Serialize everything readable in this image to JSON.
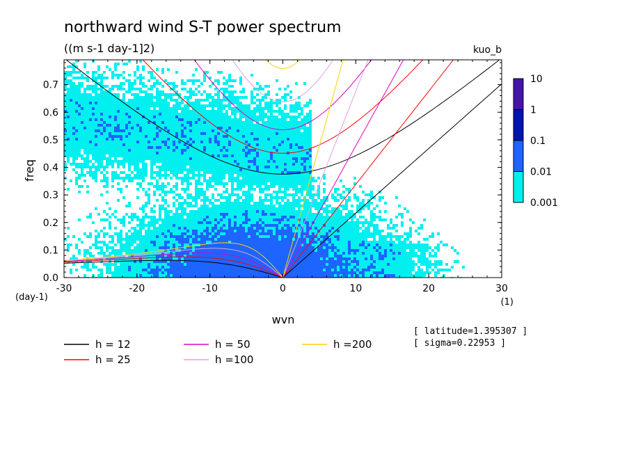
{
  "chart_data": {
    "type": "heatmap",
    "title": "northward wind S-T power spectrum",
    "subtitle": "((m s-1 day-1]2)",
    "model_label": "kuo_b",
    "xlabel": "wvn",
    "ylabel": "freq",
    "x_unit": "(1)",
    "y_unit": "(day-1)",
    "xlim": [
      -30,
      30
    ],
    "ylim": [
      0,
      0.79
    ],
    "x_ticks": [
      -30,
      -20,
      -10,
      0,
      10,
      20,
      30
    ],
    "x_tick_labels": [
      "-30",
      "-20",
      "-10",
      "0",
      "10",
      "20",
      "30"
    ],
    "y_ticks": [
      0.0,
      0.1,
      0.2,
      0.3,
      0.4,
      0.5,
      0.6,
      0.7
    ],
    "y_tick_labels": [
      "0.0",
      "0.1",
      "0.2",
      "0.3",
      "0.4",
      "0.5",
      "0.6",
      "0.7"
    ],
    "colorbar": {
      "levels": [
        0.001,
        0.01,
        0.1,
        1,
        10
      ],
      "level_labels": [
        "0.001",
        "0.01",
        "0.1",
        "1",
        "10"
      ],
      "colors": [
        "#00f0f0",
        "#1e64ff",
        "#0014b4",
        "#4614aa"
      ]
    },
    "dispersion_curves": [
      {
        "name": "h = 12",
        "h": 12,
        "color": "#000000"
      },
      {
        "name": "h = 25",
        "h": 25,
        "color": "#ff0000"
      },
      {
        "name": "h = 50",
        "h": 50,
        "color": "#e000c0"
      },
      {
        "name": "h =100",
        "h": 100,
        "color": "#e0a0e0"
      },
      {
        "name": "h =200",
        "h": 200,
        "color": "#ffd000"
      }
    ],
    "latitude_text": "[ latitude=1.395307 ]",
    "sigma_text": "[ sigma=0.22953 ]"
  }
}
